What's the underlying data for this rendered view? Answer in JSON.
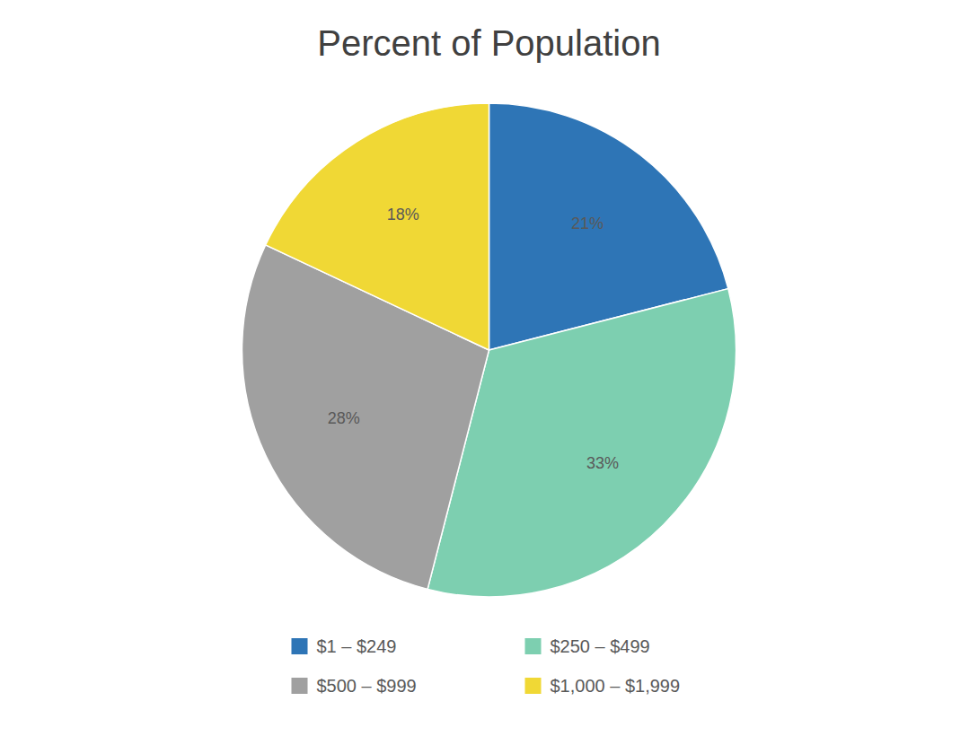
{
  "chart_data": {
    "type": "pie",
    "title": "Percent of Population",
    "categories": [
      "$1 – $249",
      "$250 – $499",
      "$500 – $999",
      "$1,000 – $1,999"
    ],
    "values": [
      21,
      33,
      28,
      18
    ],
    "value_labels": [
      "21%",
      "33%",
      "28%",
      "18%"
    ],
    "colors": [
      "#2E75B6",
      "#7DCFB0",
      "#A0A0A0",
      "#F0D835"
    ],
    "data_labels": true,
    "legend": "bottom"
  }
}
